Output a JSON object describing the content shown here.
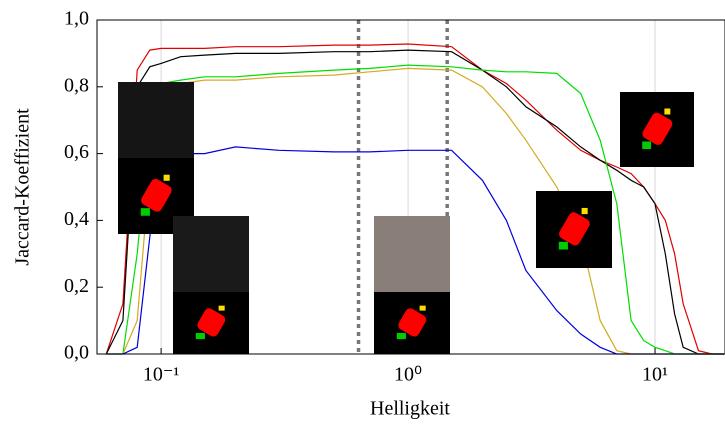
{
  "chart_data": {
    "type": "line",
    "xlabel": "Helligkeit",
    "ylabel": "Jaccard-Koeffizient",
    "log_x": true,
    "xgrid": true,
    "xlim": [
      0.055,
      19.2
    ],
    "ylim": [
      0,
      1
    ],
    "xticks": [
      {
        "value": 0.1,
        "label": "10⁻¹"
      },
      {
        "value": 1,
        "label": "10⁰"
      },
      {
        "value": 10,
        "label": "10¹"
      }
    ],
    "yticks": [
      {
        "value": 0,
        "label": "0,0"
      },
      {
        "value": 0.2,
        "label": "0,2"
      },
      {
        "value": 0.4,
        "label": "0,4"
      },
      {
        "value": 0.6,
        "label": "0,6"
      },
      {
        "value": 0.8,
        "label": "0,8"
      },
      {
        "value": 1,
        "label": "1,0"
      }
    ],
    "vlines": [
      0.63,
      1.44
    ],
    "x": [
      0.06,
      0.07,
      0.08,
      0.09,
      0.1,
      0.12,
      0.15,
      0.2,
      0.3,
      0.5,
      0.7,
      1,
      1.5,
      2,
      2.5,
      3,
      4,
      5,
      6,
      7,
      8,
      9,
      10,
      11,
      12,
      13,
      15,
      17,
      19
    ],
    "series": [
      {
        "color": "#e00000",
        "values": [
          0,
          0.15,
          0.85,
          0.91,
          0.915,
          0.915,
          0.915,
          0.92,
          0.92,
          0.925,
          0.925,
          0.928,
          0.92,
          0.85,
          0.81,
          0.76,
          0.67,
          0.61,
          0.58,
          0.56,
          0.54,
          0.5,
          0.45,
          0.4,
          0.3,
          0.15,
          0.01,
          0,
          0
        ]
      },
      {
        "color": "#000000",
        "values": [
          0,
          0.1,
          0.8,
          0.86,
          0.87,
          0.89,
          0.895,
          0.9,
          0.9,
          0.905,
          0.905,
          0.91,
          0.905,
          0.85,
          0.8,
          0.74,
          0.68,
          0.62,
          0.58,
          0.55,
          0.52,
          0.5,
          0.45,
          0.3,
          0.12,
          0.02,
          0,
          0,
          0
        ]
      },
      {
        "color": "#00dd00",
        "values": [
          0,
          0,
          0.3,
          0.7,
          0.81,
          0.82,
          0.83,
          0.83,
          0.84,
          0.85,
          0.855,
          0.865,
          0.86,
          0.85,
          0.845,
          0.845,
          0.84,
          0.78,
          0.64,
          0.45,
          0.1,
          0.04,
          0.02,
          0.01,
          0,
          0,
          0,
          0,
          0
        ]
      },
      {
        "color": "#d4aa20",
        "values": [
          0,
          0,
          0.1,
          0.55,
          0.78,
          0.81,
          0.82,
          0.82,
          0.83,
          0.835,
          0.845,
          0.855,
          0.85,
          0.8,
          0.72,
          0.64,
          0.5,
          0.35,
          0.1,
          0.01,
          0,
          0,
          0,
          0,
          0,
          0,
          0,
          0,
          0
        ]
      },
      {
        "color": "#0000dd",
        "values": [
          0,
          0,
          0.02,
          0.35,
          0.59,
          0.6,
          0.6,
          0.62,
          0.61,
          0.605,
          0.605,
          0.61,
          0.61,
          0.52,
          0.4,
          0.25,
          0.13,
          0.06,
          0.02,
          0,
          0,
          0,
          0,
          0,
          0,
          0,
          0,
          0,
          0
        ]
      }
    ]
  }
}
